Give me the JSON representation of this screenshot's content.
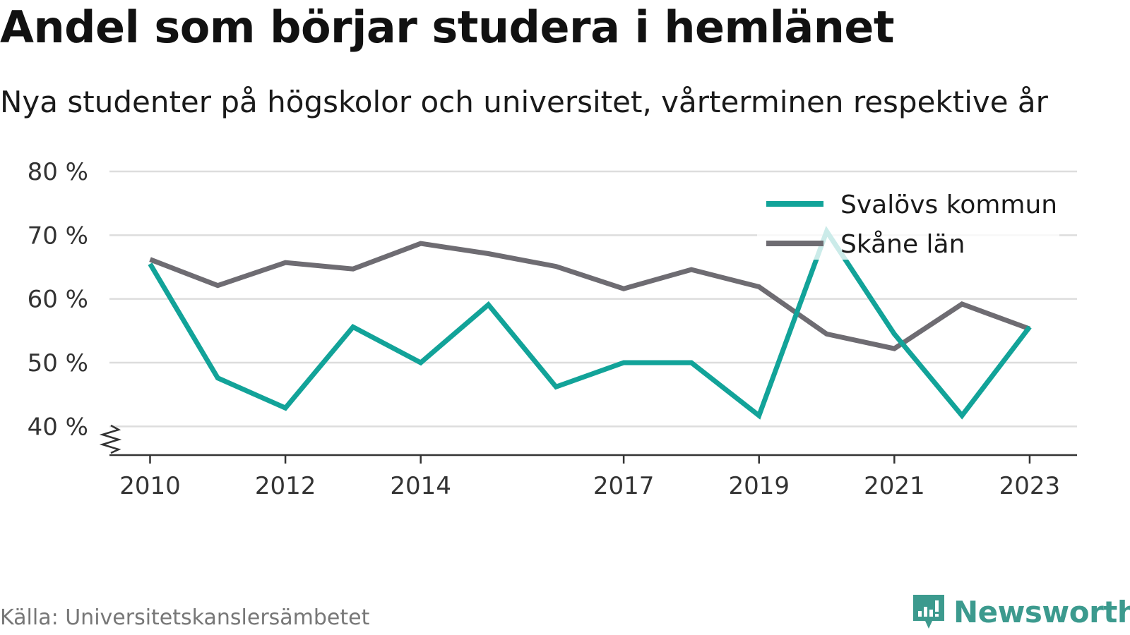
{
  "header": {
    "title": "Andel som börjar studera i hemlänet",
    "subtitle": "Nya studenter på högskolor och universitet, vårterminen respektive år"
  },
  "footer": {
    "source": "Källa: Universitetskanslersämbetet",
    "brand": "Newsworthy"
  },
  "colors": {
    "series_teal": "#12a399",
    "series_gray": "#6e6c72",
    "grid": "#dddddd",
    "brand": "#3c9a8e"
  },
  "chart_data": {
    "type": "line",
    "x": [
      2010,
      2011,
      2012,
      2013,
      2014,
      2015,
      2016,
      2017,
      2018,
      2019,
      2020,
      2021,
      2022,
      2023
    ],
    "x_tick_labels": [
      "2010",
      "2012",
      "2014",
      "2017",
      "2019",
      "2021",
      "2023"
    ],
    "y_tick_labels": [
      "80 %",
      "70 %",
      "60 %",
      "50 %",
      "40 %"
    ],
    "y_ticks": [
      80,
      70,
      60,
      50,
      40
    ],
    "ylim": [
      35.5,
      80
    ],
    "xlim": [
      2009.4,
      2023.7
    ],
    "grid": true,
    "legend_position": "top-right",
    "series": [
      {
        "name": "Svalövs kommun",
        "color": "#12a399",
        "values": [
          65.5,
          47.6,
          42.9,
          55.6,
          50.0,
          59.1,
          46.2,
          50.0,
          50.0,
          41.7,
          70.6,
          54.5,
          41.7,
          55.6
        ]
      },
      {
        "name": "Skåne län",
        "color": "#6e6c72",
        "values": [
          66.2,
          62.1,
          65.7,
          64.7,
          68.7,
          67.1,
          65.1,
          61.6,
          64.6,
          61.9,
          54.5,
          52.2,
          59.2,
          55.3
        ]
      }
    ]
  }
}
